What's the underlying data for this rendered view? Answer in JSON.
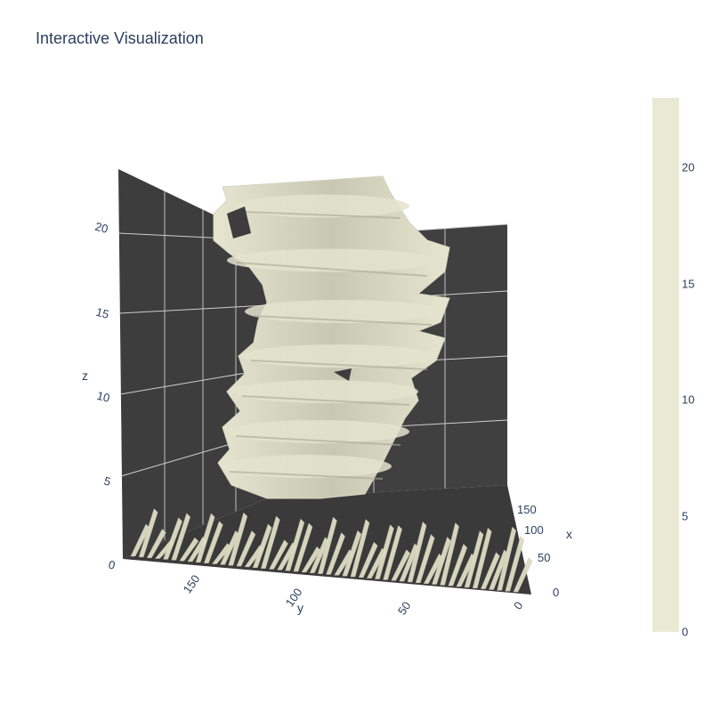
{
  "title": "Interactive Visualization",
  "chart_data": {
    "type": "isosurface",
    "title": "Interactive Visualization",
    "x_axis": {
      "label": "x",
      "ticks": [
        "0",
        "50",
        "100",
        "150"
      ],
      "range": [
        0,
        170
      ]
    },
    "y_axis": {
      "label": "y",
      "ticks": [
        "0",
        "50",
        "100",
        "150"
      ],
      "range": [
        0,
        190
      ]
    },
    "z_axis": {
      "label": "z",
      "ticks": [
        "0",
        "5",
        "10",
        "15",
        "20"
      ],
      "range": [
        0,
        23
      ]
    },
    "colorbar": {
      "ticks": [
        "0",
        "5",
        "10",
        "15",
        "20"
      ],
      "range": [
        0,
        23
      ],
      "color": "#e9e9d4"
    },
    "surface_color": "#deddc4",
    "surface_shadow_color": "#bdbcab",
    "background_color": "#3c3c3c",
    "grid": true
  }
}
